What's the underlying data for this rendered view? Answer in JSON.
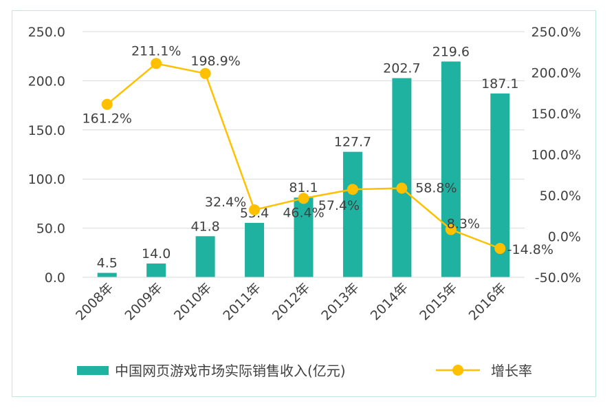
{
  "colors": {
    "bar": "#20b2a0",
    "line": "#ffc000",
    "grid": "#d9d9d9",
    "text": "#404040",
    "border": "#bfe7dc"
  },
  "legend": {
    "bar_label": "中国网页游戏市场实际销售收入(亿元)",
    "line_label": "增长率"
  },
  "chart_data": {
    "type": "bar",
    "categories": [
      "2008年",
      "2009年",
      "2010年",
      "2011年",
      "2012年",
      "2013年",
      "2014年",
      "2015年",
      "2016年"
    ],
    "series": [
      {
        "name": "中国网页游戏市场实际销售收入(亿元)",
        "type": "bar",
        "axis": "left",
        "values": [
          4.5,
          14.0,
          41.8,
          55.4,
          81.1,
          127.7,
          202.7,
          219.6,
          187.1
        ],
        "labels": [
          "4.5",
          "14.0",
          "41.8",
          "55.4",
          "81.1",
          "127.7",
          "202.7",
          "219.6",
          "187.1"
        ]
      },
      {
        "name": "增长率",
        "type": "line",
        "axis": "right",
        "values": [
          161.2,
          211.1,
          198.9,
          32.4,
          46.4,
          57.4,
          58.8,
          8.3,
          -14.8
        ],
        "labels": [
          "161.2%",
          "211.1%",
          "198.9%",
          "32.4%",
          "46.4%",
          "57.4%",
          "58.8%",
          "8.3%",
          "-14.8%"
        ]
      }
    ],
    "y_left": {
      "range": [
        0,
        250
      ],
      "ticks": [
        "0.0",
        "50.0",
        "100.0",
        "150.0",
        "200.0",
        "250.0"
      ]
    },
    "y_right": {
      "range": [
        -50,
        250
      ],
      "ticks": [
        "-50.0%",
        "0.0%",
        "50.0%",
        "100.0%",
        "150.0%",
        "200.0%",
        "250.0%"
      ]
    },
    "grid": true,
    "legend_position": "bottom"
  }
}
